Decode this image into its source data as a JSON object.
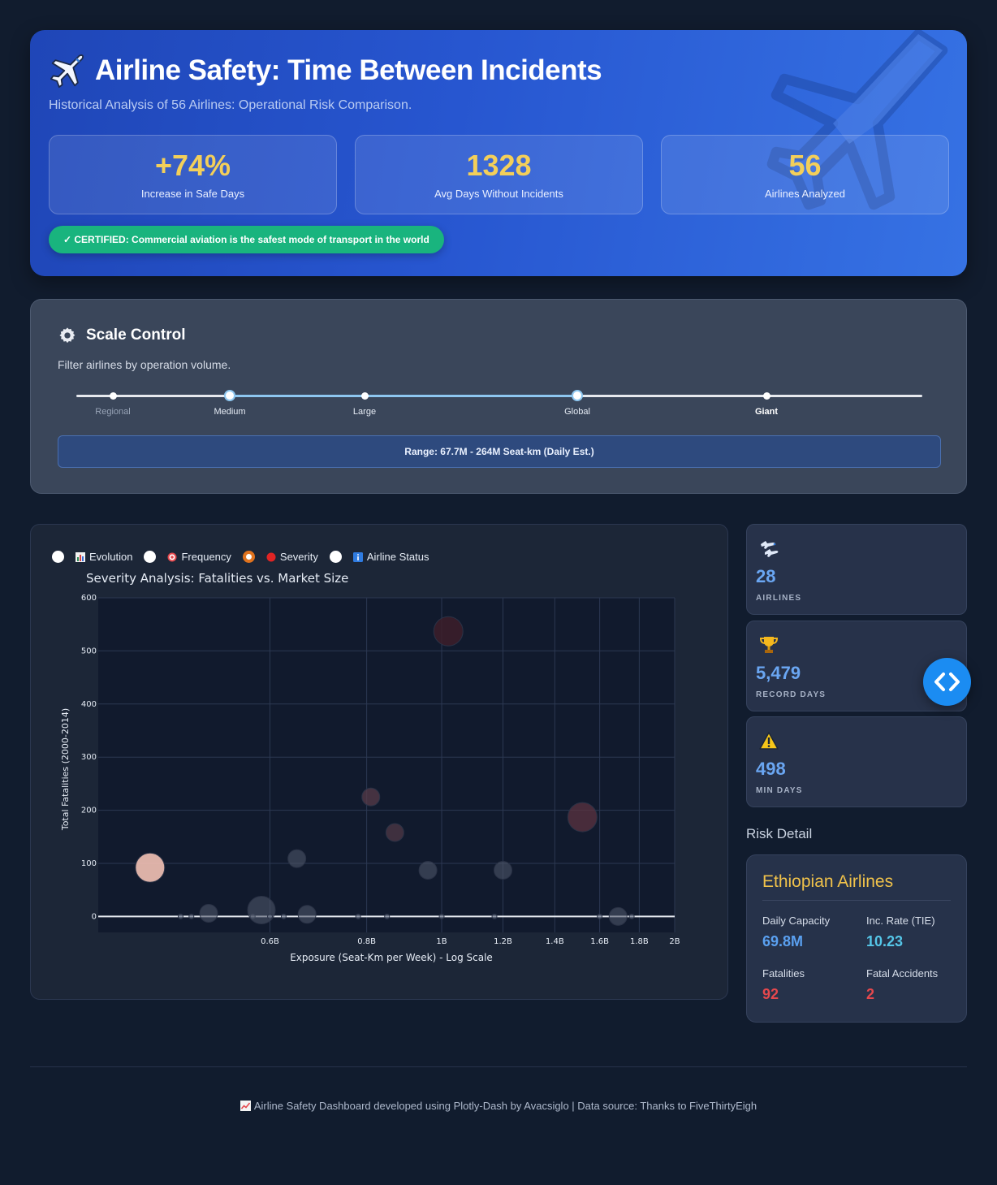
{
  "header": {
    "title": "Airline Safety: Time Between Incidents",
    "subtitle": "Historical Analysis of 56 Airlines: Operational Risk Comparison.",
    "kpis": [
      {
        "value": "+74%",
        "label": "Increase in Safe Days"
      },
      {
        "value": "1328",
        "label": "Avg Days Without Incidents"
      },
      {
        "value": "56",
        "label": "Airlines Analyzed"
      }
    ],
    "certified": "✓ CERTIFIED: Commercial aviation is the safest mode of transport in the world"
  },
  "scale_control": {
    "title": "Scale Control",
    "description": "Filter airlines by operation volume.",
    "marks": [
      "Regional",
      "Medium",
      "Large",
      "Global",
      "Giant"
    ],
    "selected_from": "Medium",
    "selected_to": "Global",
    "range_text": "Range: 67.7M - 264M Seat-km (Daily Est.)",
    "accent": "#8ec7f0"
  },
  "chart_tabs": [
    {
      "label": "Evolution",
      "icon": "bar-chart-icon",
      "selected": false
    },
    {
      "label": "Frequency",
      "icon": "target-icon",
      "selected": false
    },
    {
      "label": "Severity",
      "icon": "red-circle-icon",
      "selected": true
    },
    {
      "label": "Airline Status",
      "icon": "info-icon",
      "selected": false
    }
  ],
  "chart_data": {
    "type": "scatter",
    "title": "Severity Analysis: Fatalities vs. Market Size",
    "xlabel": "Exposure (Seat-Km per Week) - Log Scale",
    "ylabel": "Total Fatalities (2000-2014)",
    "x_scale": "log",
    "xlim": [
      0.36,
      2.0
    ],
    "ylim": [
      -30,
      600
    ],
    "x_ticks": [
      0.6,
      0.8,
      1.0,
      1.2,
      1.4,
      1.6,
      1.8,
      2.0
    ],
    "x_tick_labels": [
      "0.6B",
      "0.8B",
      "1B",
      "1.2B",
      "1.4B",
      "1.6B",
      "1.8B",
      "2B"
    ],
    "y_ticks": [
      0,
      100,
      200,
      300,
      400,
      500,
      600
    ],
    "y_tick_labels": [
      "0",
      "100",
      "200",
      "300",
      "400",
      "500",
      "600"
    ],
    "grid": true,
    "zero_line": true,
    "points": [
      {
        "x": 0.42,
        "y": 92,
        "size": 36,
        "color": "#f3c2b5",
        "opacity": 0.9
      },
      {
        "x": 0.46,
        "y": 0,
        "size": 6,
        "color": "#5a6478",
        "opacity": 0.6
      },
      {
        "x": 0.475,
        "y": 0,
        "size": 6,
        "color": "#5a6478",
        "opacity": 0.6
      },
      {
        "x": 0.5,
        "y": 6,
        "size": 22,
        "color": "#4d5568",
        "opacity": 0.6
      },
      {
        "x": 0.57,
        "y": 0,
        "size": 6,
        "color": "#5a6478",
        "opacity": 0.6
      },
      {
        "x": 0.585,
        "y": 12,
        "size": 34,
        "color": "#4d5568",
        "opacity": 0.6
      },
      {
        "x": 0.6,
        "y": 0,
        "size": 6,
        "color": "#5a6478",
        "opacity": 0.6
      },
      {
        "x": 0.625,
        "y": 0,
        "size": 6,
        "color": "#5a6478",
        "opacity": 0.6
      },
      {
        "x": 0.65,
        "y": 109,
        "size": 22,
        "color": "#4d5568",
        "opacity": 0.6
      },
      {
        "x": 0.67,
        "y": 4,
        "size": 22,
        "color": "#4d5568",
        "opacity": 0.6
      },
      {
        "x": 0.78,
        "y": 0,
        "size": 6,
        "color": "#5a6478",
        "opacity": 0.6
      },
      {
        "x": 0.81,
        "y": 225,
        "size": 22,
        "color": "#5b3d4a",
        "opacity": 0.7
      },
      {
        "x": 0.85,
        "y": 0,
        "size": 6,
        "color": "#5a6478",
        "opacity": 0.6
      },
      {
        "x": 0.87,
        "y": 158,
        "size": 22,
        "color": "#533a47",
        "opacity": 0.7
      },
      {
        "x": 0.96,
        "y": 87,
        "size": 22,
        "color": "#4d5568",
        "opacity": 0.6
      },
      {
        "x": 1.0,
        "y": 0,
        "size": 6,
        "color": "#5a6478",
        "opacity": 0.6
      },
      {
        "x": 1.02,
        "y": 537,
        "size": 36,
        "color": "#3d1e2a",
        "opacity": 0.85
      },
      {
        "x": 1.17,
        "y": 0,
        "size": 6,
        "color": "#5a6478",
        "opacity": 0.6
      },
      {
        "x": 1.2,
        "y": 87,
        "size": 22,
        "color": "#4d5568",
        "opacity": 0.6
      },
      {
        "x": 1.52,
        "y": 187,
        "size": 36,
        "color": "#5b3340",
        "opacity": 0.75
      },
      {
        "x": 1.6,
        "y": 0,
        "size": 6,
        "color": "#5a6478",
        "opacity": 0.6
      },
      {
        "x": 1.69,
        "y": 0,
        "size": 22,
        "color": "#4d5568",
        "opacity": 0.6
      },
      {
        "x": 1.76,
        "y": 0,
        "size": 6,
        "color": "#5a6478",
        "opacity": 0.6
      }
    ]
  },
  "stats": [
    {
      "icon": "airline-icon",
      "value": "28",
      "label": "AIRLINES"
    },
    {
      "icon": "trophy-icon",
      "value": "5,479",
      "label": "RECORD DAYS"
    },
    {
      "icon": "warning-icon",
      "value": "498",
      "label": "MIN DAYS"
    }
  ],
  "risk_detail": {
    "heading": "Risk Detail",
    "airline": "Ethiopian Airlines",
    "capacity_label": "Daily Capacity",
    "capacity_value": "69.8M",
    "rate_label": "Inc. Rate (TIE)",
    "rate_value": "10.23",
    "fatalities_label": "Fatalities",
    "fatalities_value": "92",
    "fatal_accidents_label": "Fatal Accidents",
    "fatal_accidents_value": "2"
  },
  "footer": {
    "text": "Airline Safety Dashboard developed using Plotly-Dash by Avacsiglo | Data source: Thanks to FiveThirtyEigh"
  },
  "colors": {
    "background": "#111c2e",
    "kpi_value": "#f3cf5a",
    "certified": "#19b47e",
    "stat_value": "#6aa6f2",
    "airline_name": "#f0c24a",
    "capacity": "#5aa0f0",
    "rate": "#55c6e8",
    "danger": "#e5484d"
  }
}
